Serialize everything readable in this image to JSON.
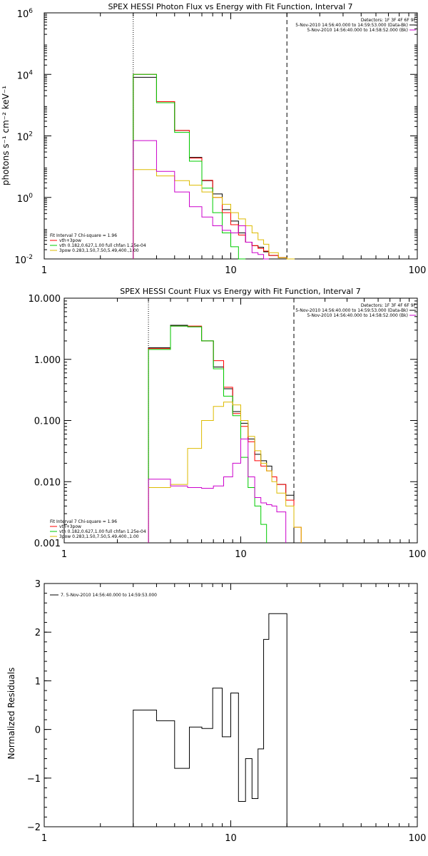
{
  "chart_data": [
    {
      "type": "line",
      "step": true,
      "title": "SPEX HESSI Photon Flux vs Energy with Fit Function, Interval 7",
      "xlabel": "",
      "ylabel": "photons s⁻¹ cm⁻² keV⁻¹",
      "xscale": "log",
      "yscale": "log",
      "xlim": [
        1,
        100
      ],
      "ylim": [
        0.01,
        1000000
      ],
      "xticks": [
        "1",
        "10",
        "100"
      ],
      "yticks": [
        {
          "v": 0.01,
          "b": "10",
          "e": "-2"
        },
        {
          "v": 1,
          "b": "10",
          "e": "0"
        },
        {
          "v": 100,
          "b": "10",
          "e": "2"
        },
        {
          "v": 10000,
          "b": "10",
          "e": "4"
        },
        {
          "v": 1000000,
          "b": "10",
          "e": "6"
        }
      ],
      "energy_range": [
        3,
        20
      ],
      "detectors": "Detectors: 1F 3F 4F 6F 9F",
      "info_lines": [
        {
          "text": "5-Nov-2010 14:56:40.000 to 14:59:53.000 (Data-Bk)",
          "color": "#000000"
        },
        {
          "text": "5-Nov-2010 14:56:40.000 to 14:58:52.000 (Bk)",
          "color": "#cc00cc"
        }
      ],
      "legend": {
        "header": "Fit Interval 7   Chi-square = 1.96",
        "entries": [
          {
            "text": "vth+3pow",
            "color": "#ff0000"
          },
          {
            "text": "vth 0.182,0.627,1.00  full chfan 1.25e-04",
            "color": "#00cc00"
          },
          {
            "text": "3pow 0.283,1.50,7.50,5.49,400.,1.00",
            "color": "#ddbb00"
          }
        ]
      },
      "edges": [
        3,
        4,
        5,
        6,
        7,
        8,
        9,
        10,
        11,
        12,
        13,
        14,
        15,
        16,
        18,
        20,
        22
      ],
      "series": [
        {
          "color": "#000000",
          "values": [
            8000,
            1300,
            150,
            20,
            3.5,
            1.3,
            0.4,
            0.17,
            0.07,
            0.035,
            0.027,
            0.024,
            0.017,
            0.013,
            0.011,
            null
          ]
        },
        {
          "color": "#ff0000",
          "values": [
            10000,
            1300,
            150,
            19,
            3.6,
            1.0,
            0.32,
            0.13,
            0.06,
            0.035,
            0.027,
            0.022,
            0.018,
            0.013,
            0.011,
            0.0095
          ]
        },
        {
          "color": "#00cc00",
          "values": [
            10000,
            1200,
            130,
            15,
            2.0,
            0.32,
            0.07,
            0.025,
            0.009,
            null,
            null,
            null,
            null,
            null,
            null,
            null
          ]
        },
        {
          "color": "#ddbb00",
          "values": [
            8,
            5,
            3.5,
            2.5,
            1.5,
            1.0,
            0.6,
            0.32,
            0.2,
            0.12,
            0.07,
            0.042,
            0.03,
            0.016,
            0.011,
            0.0095
          ]
        },
        {
          "color": "#cc00cc",
          "values": [
            70,
            7,
            1.5,
            0.5,
            0.23,
            0.12,
            0.085,
            0.07,
            0.12,
            0.035,
            0.016,
            0.014,
            0.01,
            null,
            null,
            null
          ]
        }
      ]
    },
    {
      "type": "line",
      "step": true,
      "title": "SPEX HESSI Count Flux vs Energy with Fit Function, Interval 7",
      "xlabel": "",
      "ylabel": "",
      "xscale": "log",
      "yscale": "log",
      "xlim": [
        1,
        100
      ],
      "ylim": [
        0.001,
        10
      ],
      "xticks": [
        "1",
        "10",
        "100"
      ],
      "yticks": [
        {
          "v": 0.001,
          "t": "0.001"
        },
        {
          "v": 0.01,
          "t": "0.010"
        },
        {
          "v": 0.1,
          "t": "0.100"
        },
        {
          "v": 1,
          "t": "1.000"
        },
        {
          "v": 10,
          "t": "10.000"
        }
      ],
      "energy_range": [
        3,
        20
      ],
      "detectors": "Detectors: 1F 3F 4F 6F 9F",
      "info_lines": [
        {
          "text": "5-Nov-2010 14:56:40.000 to 14:59:53.000 (Data-Bk)",
          "color": "#000000"
        },
        {
          "text": "5-Nov-2010 14:56:40.000 to 14:58:52.000 (Bk)",
          "color": "#cc00cc"
        }
      ],
      "legend": {
        "header": "Fit Interval 7   Chi-square = 1.96",
        "entries": [
          {
            "text": "vth+3pow",
            "color": "#ff0000"
          },
          {
            "text": "vth 0.182,0.627,1.00  full chfan 1.25e-04",
            "color": "#00cc00"
          },
          {
            "text": "3pow 0.283,1.50,7.50,5.49,400.,1.00",
            "color": "#ddbb00"
          }
        ]
      },
      "edges": [
        3,
        4,
        5,
        6,
        7,
        8,
        9,
        10,
        11,
        12,
        13,
        14,
        15,
        16,
        18,
        20,
        22
      ],
      "series": [
        {
          "color": "#000000",
          "values": [
            1.55,
            3.6,
            3.4,
            2.0,
            0.75,
            0.33,
            0.14,
            0.09,
            0.05,
            0.028,
            0.022,
            0.018,
            0.012,
            0.009,
            0.006,
            null
          ]
        },
        {
          "color": "#ff0000",
          "values": [
            1.5,
            3.5,
            3.5,
            2.0,
            0.95,
            0.35,
            0.13,
            0.08,
            0.045,
            0.022,
            0.018,
            0.015,
            0.012,
            0.009,
            0.005,
            0.0018
          ]
        },
        {
          "color": "#00cc00",
          "values": [
            1.45,
            3.5,
            3.4,
            2.0,
            0.7,
            0.25,
            0.12,
            0.025,
            0.008,
            0.004,
            0.002,
            null,
            null,
            null,
            null,
            null
          ]
        },
        {
          "color": "#ddbb00",
          "values": [
            0.008,
            0.009,
            0.035,
            0.1,
            0.17,
            0.2,
            0.18,
            0.1,
            0.055,
            0.032,
            0.02,
            0.015,
            0.01,
            0.0065,
            0.004,
            0.0018
          ]
        },
        {
          "color": "#cc00cc",
          "values": [
            0.011,
            0.0085,
            0.008,
            0.0078,
            0.0085,
            0.012,
            0.02,
            0.05,
            0.012,
            0.0055,
            0.0045,
            0.0042,
            0.004,
            0.0032,
            null,
            null
          ]
        }
      ]
    },
    {
      "type": "line",
      "step": true,
      "title": "",
      "xlabel": "",
      "ylabel": "Normalized Residuals",
      "xscale": "log",
      "yscale": "linear",
      "xlim": [
        1,
        100
      ],
      "ylim": [
        -2,
        3
      ],
      "xticks": [
        "1",
        "10",
        "100"
      ],
      "yticks": [
        {
          "v": -2,
          "t": "−2"
        },
        {
          "v": -1,
          "t": "−1"
        },
        {
          "v": 0,
          "t": "0"
        },
        {
          "v": 1,
          "t": "1"
        },
        {
          "v": 2,
          "t": "2"
        },
        {
          "v": 3,
          "t": "3"
        }
      ],
      "legend": {
        "entries": [
          {
            "text": "7.  5-Nov-2010 14:56:40.000 to 14:59:53.000",
            "color": "#000000"
          }
        ]
      },
      "edges": [
        3,
        4,
        5,
        6,
        7,
        8,
        9,
        10,
        11,
        12,
        13,
        14,
        15,
        16,
        18,
        20
      ],
      "series": [
        {
          "color": "#000000",
          "values": [
            0.4,
            0.18,
            -0.8,
            0.05,
            0.02,
            0.85,
            -0.15,
            0.75,
            -1.48,
            -0.6,
            -1.42,
            -0.4,
            1.85,
            2.38,
            2.38
          ]
        }
      ]
    }
  ]
}
